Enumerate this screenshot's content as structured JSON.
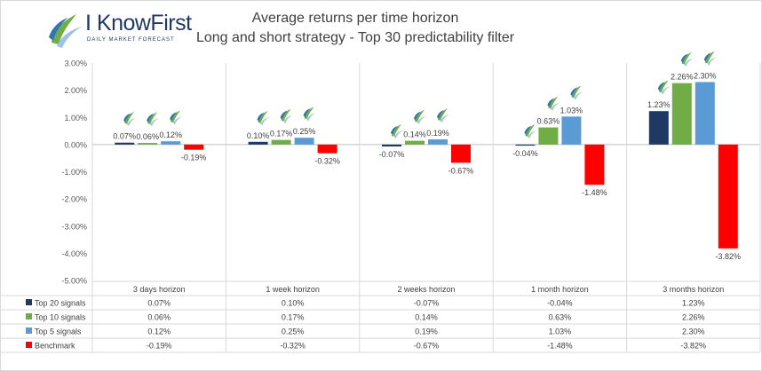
{
  "logo": {
    "name": "I KnowFirst",
    "tagline": "DAILY MARKET FORECAST"
  },
  "chart_data": {
    "type": "bar",
    "title": "Average returns per time horizon",
    "subtitle": "Long and short strategy - Top 30 predictability filter",
    "categories": [
      "3 days horizon",
      "1 week horizon",
      "2 weeks horizon",
      "1 month horizon",
      "3 months horizon"
    ],
    "series": [
      {
        "name": "Top 20 signals",
        "color": "#1f3864",
        "values": [
          0.07,
          0.1,
          -0.07,
          -0.04,
          1.23
        ],
        "labels": [
          "0.07%",
          "0.10%",
          "-0.07%",
          "-0.04%",
          "1.23%"
        ]
      },
      {
        "name": "Top 10 signals",
        "color": "#70ad47",
        "values": [
          0.06,
          0.17,
          0.14,
          0.63,
          2.26
        ],
        "labels": [
          "0.06%",
          "0.17%",
          "0.14%",
          "0.63%",
          "2.26%"
        ]
      },
      {
        "name": "Top 5 signals",
        "color": "#5b9bd5",
        "values": [
          0.12,
          0.25,
          0.19,
          1.03,
          2.3
        ],
        "labels": [
          "0.12%",
          "0.25%",
          "0.19%",
          "1.03%",
          "2.30%"
        ]
      },
      {
        "name": "Benchmark",
        "color": "#ff0000",
        "values": [
          -0.19,
          -0.32,
          -0.67,
          -1.48,
          -3.82
        ],
        "labels": [
          "-0.19%",
          "-0.32%",
          "-0.67%",
          "-1.48%",
          "-3.82%"
        ]
      }
    ],
    "ylim": [
      -5,
      3
    ],
    "y_ticks": [
      3,
      2,
      1,
      0,
      -1,
      -2,
      -3,
      -4,
      -5
    ],
    "y_tick_labels": [
      "3.00%",
      "2.00%",
      "1.00%",
      "0.00%",
      "-1.00%",
      "-2.00%",
      "-3.00%",
      "-4.00%",
      "-5.00%"
    ],
    "grid": false,
    "data_table": true,
    "legend_placement": "data table"
  }
}
